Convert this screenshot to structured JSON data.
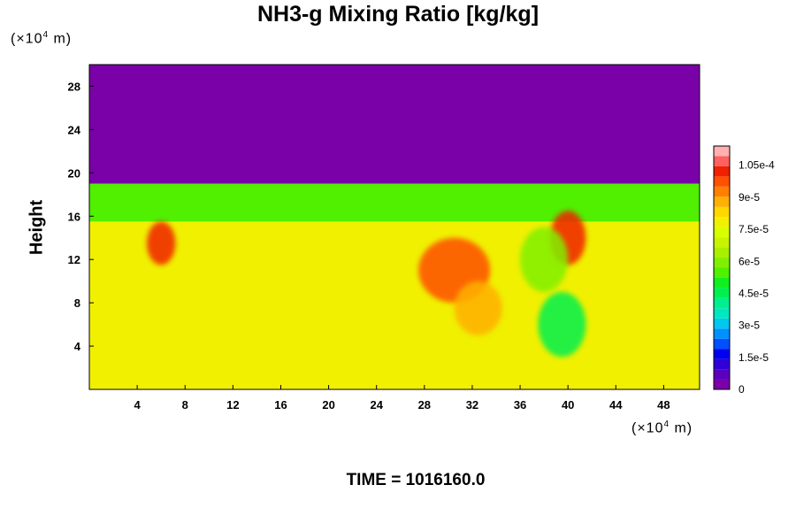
{
  "chart_data": {
    "type": "heatmap",
    "title": "NH3-g Mixing Ratio [kg/kg]",
    "ylabel": "Height",
    "x_unit": {
      "prefix": "(×10",
      "exp": "4",
      "suffix": " m)"
    },
    "y_unit": {
      "prefix": "(×10",
      "exp": "4",
      "suffix": " m)"
    },
    "xlim": [
      0,
      51
    ],
    "ylim": [
      0,
      30
    ],
    "x_ticks": [
      4,
      8,
      12,
      16,
      20,
      24,
      28,
      32,
      36,
      40,
      44,
      48
    ],
    "y_ticks": [
      4,
      8,
      12,
      16,
      20,
      24,
      28
    ],
    "colorbar": {
      "range": [
        0,
        0.000114
      ],
      "tick_values": [
        0,
        1.5e-05,
        3e-05,
        4.5e-05,
        6e-05,
        7.5e-05,
        9e-05,
        0.000105
      ],
      "tick_labels": [
        "0",
        "1.5e-5",
        "3e-5",
        "4.5e-5",
        "6e-5",
        "7.5e-5",
        "9e-5",
        "1.05e-4"
      ],
      "colors": [
        "#7a00a8",
        "#5c00c0",
        "#3000d8",
        "#0000f0",
        "#0050ff",
        "#0090ff",
        "#00c8f0",
        "#00e8c0",
        "#00f090",
        "#00f050",
        "#10f020",
        "#50f000",
        "#80f000",
        "#a8f000",
        "#c8f400",
        "#d8ff00",
        "#f0f000",
        "#ffd800",
        "#ffb000",
        "#ff8000",
        "#ff5000",
        "#f02000",
        "#ff6060",
        "#ffb0b0"
      ]
    },
    "regions": [
      {
        "name": "upper-layer",
        "x": [
          0,
          51
        ],
        "y": [
          19,
          30
        ],
        "value": 0
      },
      {
        "name": "lower-layer",
        "x": [
          0,
          51
        ],
        "y": [
          0,
          15.5
        ],
        "value": 7.8e-05
      },
      {
        "name": "mid-band",
        "x": [
          0,
          51
        ],
        "y": [
          15.5,
          19
        ],
        "value": 5.5e-05
      }
    ],
    "features": [
      {
        "name": "plume-left",
        "cx": 6,
        "cy": 13.5,
        "rx": 1.2,
        "ry": 2.0,
        "value": 0.0001
      },
      {
        "name": "plume-31",
        "cx": 30.5,
        "cy": 11,
        "rx": 3,
        "ry": 3,
        "value": 9.5e-05
      },
      {
        "name": "plume-33",
        "cx": 32.5,
        "cy": 7.5,
        "rx": 2,
        "ry": 2.5,
        "value": 9e-05
      },
      {
        "name": "plume-40",
        "cx": 40,
        "cy": 14,
        "rx": 1.5,
        "ry": 2.5,
        "value": 0.0001
      },
      {
        "name": "cell-38",
        "cx": 38,
        "cy": 12,
        "rx": 2,
        "ry": 3,
        "value": 6e-05
      },
      {
        "name": "cell-39",
        "cx": 39.5,
        "cy": 6,
        "rx": 2,
        "ry": 3,
        "value": 4.5e-05
      }
    ]
  },
  "time_label": "TIME = 1016160.0"
}
